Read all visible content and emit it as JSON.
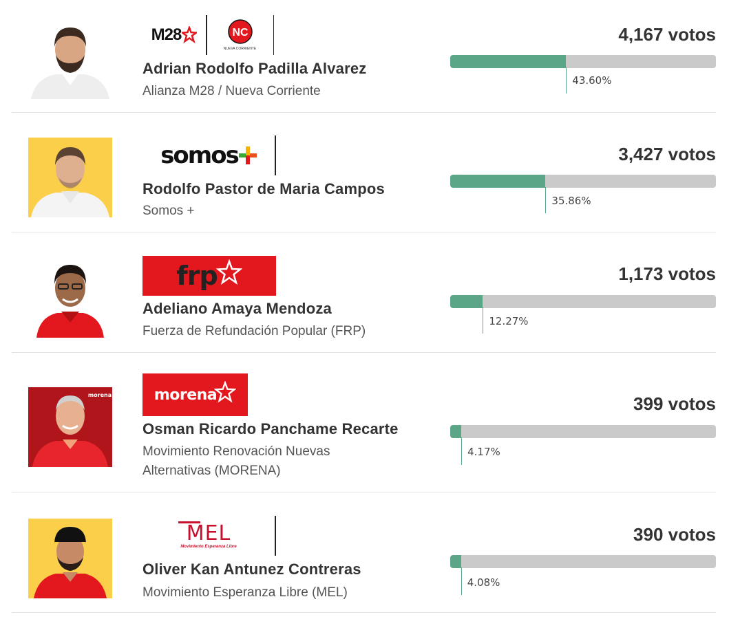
{
  "colors": {
    "bar_fill": "#5aa686",
    "bar_track": "#cacaca",
    "text_dark": "#333333",
    "text_muted": "#555555",
    "frp_red": "#e3181e",
    "morena_red": "#e3181e",
    "mel_red": "#c8102e",
    "photo_yellow": "#fbcf4a"
  },
  "candidates": [
    {
      "name": "Adrian Rodolfo Padilla Alvarez",
      "party": "Alianza M28 / Nueva Corriente",
      "votes": "4,167 votos",
      "percent_label": "43.60%",
      "percent": 43.6,
      "photo": "candidate-photo-white-bg",
      "logos": [
        {
          "icon": "m28-logo",
          "text": "M28"
        },
        {
          "icon": "nueva-corriente-logo",
          "text": "NC",
          "subtext": "NUEVA CORRIENTE"
        }
      ]
    },
    {
      "name": "Rodolfo Pastor de Maria Campos",
      "party": "Somos +",
      "votes": "3,427 votos",
      "percent_label": "35.86%",
      "percent": 35.86,
      "photo": "candidate-photo-yellow-bg",
      "logos": [
        {
          "icon": "somos-mas-logo",
          "text": "somos"
        }
      ]
    },
    {
      "name": "Adeliano Amaya Mendoza",
      "party": "Fuerza de Refundación Popular (FRP)",
      "votes": "1,173 votos",
      "percent_label": "12.27%",
      "percent": 12.27,
      "photo": "candidate-photo-white-bg",
      "logos": [
        {
          "icon": "frp-logo",
          "text": "frp"
        }
      ]
    },
    {
      "name": "Osman Ricardo Panchame Recarte",
      "party": "Movimiento Renovación Nuevas Alternativas (MORENA)",
      "votes": "399 votos",
      "percent_label": "4.17%",
      "percent": 4.17,
      "photo": "candidate-photo-red-bg",
      "photo_badge": "morena",
      "logos": [
        {
          "icon": "morena-logo",
          "text": "morena"
        }
      ]
    },
    {
      "name": "Oliver Kan Antunez Contreras",
      "party": "Movimiento Esperanza Libre (MEL)",
      "votes": "390 votos",
      "percent_label": "4.08%",
      "percent": 4.08,
      "photo": "candidate-photo-yellow-bg",
      "logos": [
        {
          "icon": "mel-logo",
          "text": "MEL",
          "subtext": "Movimiento Esperanza Libre"
        }
      ]
    }
  ]
}
